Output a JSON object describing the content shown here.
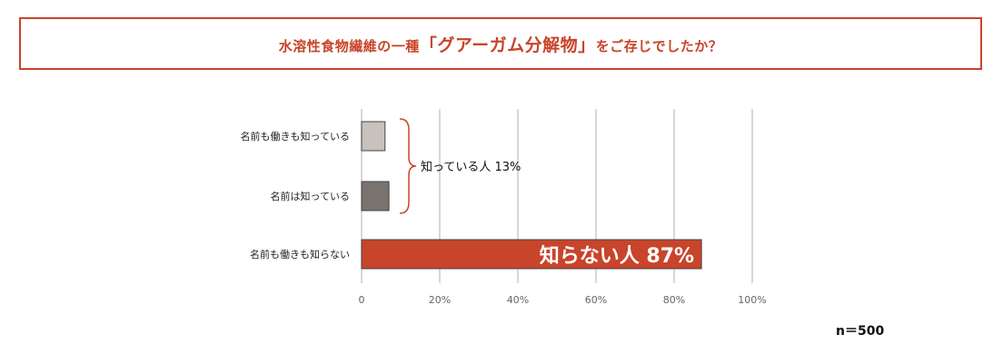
{
  "title": {
    "before": "水溶性食物繊維の一種",
    "highlight": "「グアーガム分解物」",
    "after": "をご存じでしたか？"
  },
  "sample_note": "n＝500",
  "colors": {
    "accent": "#c8442a",
    "bar_know_both": "#c9c1bc",
    "bar_know_name": "#7a726e",
    "bar_dont_know": "#c8442a",
    "grid": "#cccccc"
  },
  "chart_data": {
    "type": "bar",
    "orientation": "horizontal",
    "categories": [
      "名前も働きも知っている",
      "名前は知っている",
      "名前も働きも知らない"
    ],
    "values": [
      6,
      7,
      87
    ],
    "xlim": [
      0,
      100
    ],
    "x_ticks": [
      "0",
      "20%",
      "40%",
      "60%",
      "80%",
      "100%"
    ],
    "x_tick_values": [
      0,
      20,
      40,
      60,
      80,
      100
    ],
    "grid": true,
    "annotations": {
      "group_label": "知っている人 13%",
      "bar_label": "知らない人 87%"
    }
  }
}
